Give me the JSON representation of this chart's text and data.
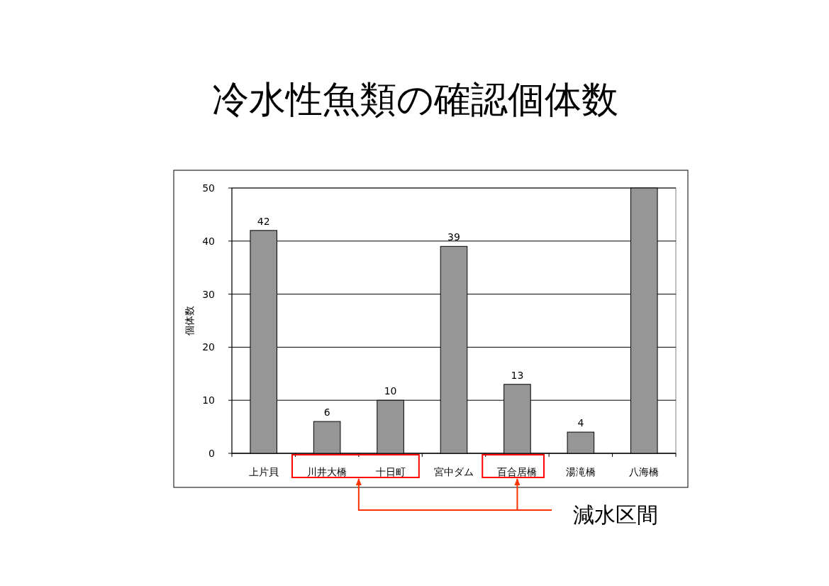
{
  "chart_data": {
    "type": "bar",
    "title": "冷水性魚類の確認個体数",
    "ylabel": "個体数",
    "categories": [
      "上片貝",
      "川井大橋",
      "十日町",
      "宮中ダム",
      "百合居橋",
      "湯滝橋",
      "八海橋"
    ],
    "values": [
      42,
      6,
      10,
      39,
      13,
      4,
      50
    ],
    "value_labels": [
      "42",
      "6",
      "10",
      "39",
      "13",
      "4",
      null
    ],
    "color": "#969696",
    "ylim": [
      0,
      50
    ],
    "yticks": [
      0,
      10,
      20,
      30,
      40,
      50
    ],
    "grid": "y",
    "annotations": [
      "減水区間"
    ]
  }
}
